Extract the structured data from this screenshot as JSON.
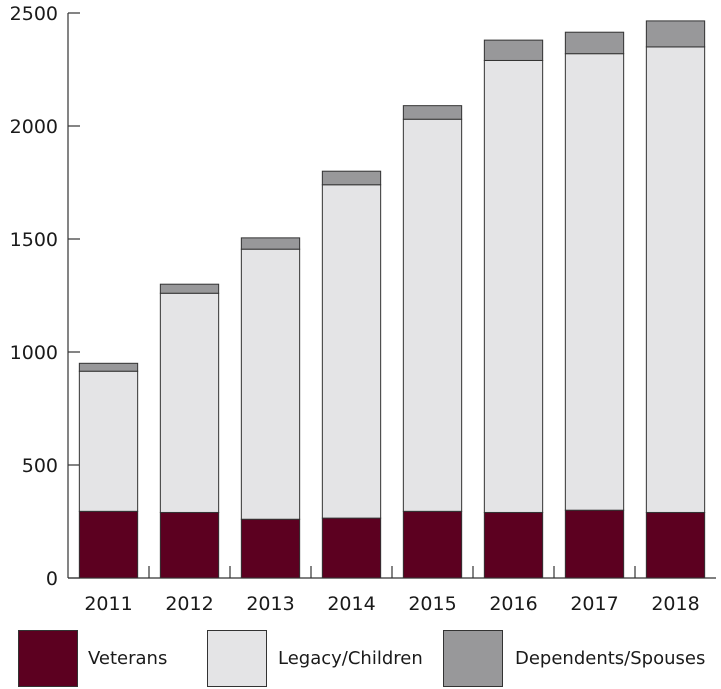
{
  "chart_data": {
    "type": "bar",
    "stacked": true,
    "categories": [
      "2011",
      "2012",
      "2013",
      "2014",
      "2015",
      "2016",
      "2017",
      "2018"
    ],
    "series": [
      {
        "name": "Veterans",
        "color": "#5c0020",
        "values": [
          295,
          290,
          260,
          265,
          295,
          290,
          300,
          290
        ]
      },
      {
        "name": "Legacy/Children",
        "color": "#e4e4e6",
        "values": [
          620,
          970,
          1195,
          1475,
          1735,
          2000,
          2020,
          2060
        ]
      },
      {
        "name": "Dependents/Spouses",
        "color": "#98989a",
        "values": [
          35,
          40,
          50,
          60,
          60,
          90,
          95,
          115
        ]
      }
    ],
    "title": "",
    "xlabel": "",
    "ylabel": "",
    "ylim": [
      0,
      2500
    ],
    "yticks": [
      "0",
      "500",
      "1000",
      "1500",
      "2000",
      "2500"
    ],
    "grid": false,
    "legend_position": "bottom"
  }
}
